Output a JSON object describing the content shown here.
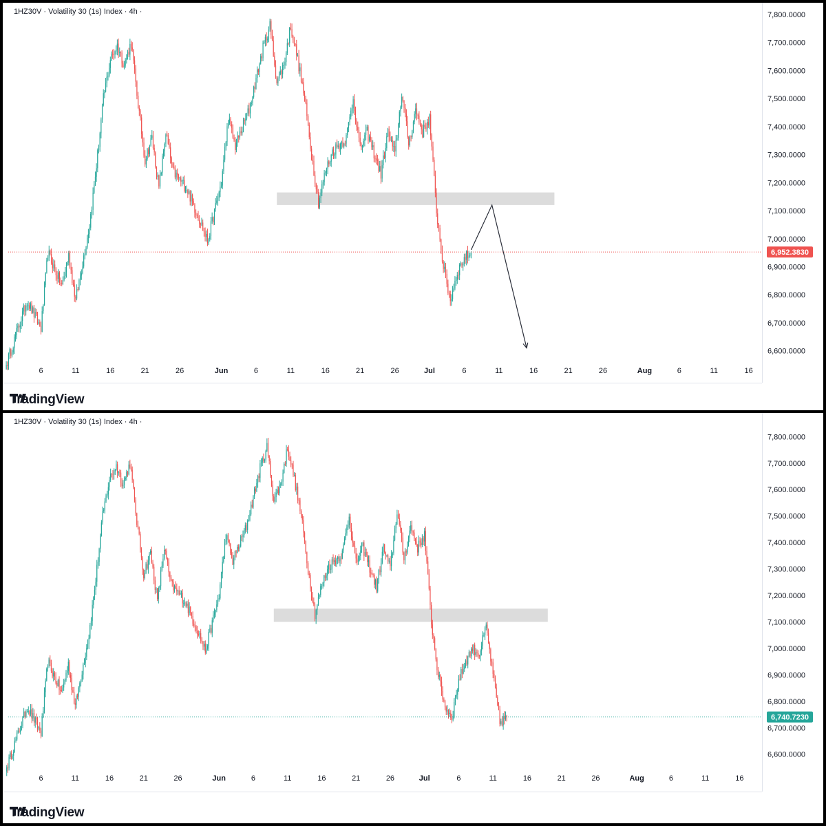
{
  "brand": {
    "name": "TradingView"
  },
  "colors": {
    "up": "#26a69a",
    "down": "#ef5350",
    "zone": "#dcdcdc",
    "grid": "#e0e3eb",
    "text": "#131722"
  },
  "chart_data": [
    {
      "type": "candlestick",
      "header": "1HZ30V · Volatility 30 (1s) Index · 4h ·",
      "y_ticks": [
        "7,800.0000",
        "7,700.0000",
        "7,600.0000",
        "7,500.0000",
        "7,400.0000",
        "7,300.0000",
        "7,200.0000",
        "7,100.0000",
        "7,000.0000",
        "6,900.0000",
        "6,800.0000",
        "6,700.0000",
        "6,600.0000"
      ],
      "x_ticks": [
        "6",
        "11",
        "16",
        "21",
        "26",
        "Jun",
        "6",
        "11",
        "16",
        "21",
        "26",
        "Jul",
        "6",
        "11",
        "16",
        "21",
        "26",
        "Aug",
        "6",
        "11",
        "16"
      ],
      "ylim": [
        6550,
        7800
      ],
      "last_price": {
        "label": "6,952.3830",
        "value": 6952.383,
        "direction": "down"
      },
      "zone": {
        "from": 7120,
        "to": 7165,
        "start": "Jun 9",
        "end": "Jul 19"
      },
      "projection": [
        {
          "date": "Jul 7",
          "price": 6960
        },
        {
          "date": "Jul 10",
          "price": 7120
        },
        {
          "date": "Jul 15",
          "price": 6610
        }
      ],
      "anchors": [
        [
          "May 1",
          6550
        ],
        [
          "May 4",
          6780
        ],
        [
          "May 6",
          6680
        ],
        [
          "May 7",
          6950
        ],
        [
          "May 8",
          6890
        ],
        [
          "May 9",
          6830
        ],
        [
          "May 10",
          6940
        ],
        [
          "May 11",
          6780
        ],
        [
          "May 13",
          7050
        ],
        [
          "May 14",
          7260
        ],
        [
          "May 15",
          7500
        ],
        [
          "May 16",
          7640
        ],
        [
          "May 17",
          7690
        ],
        [
          "May 18",
          7620
        ],
        [
          "May 19",
          7700
        ],
        [
          "May 20",
          7480
        ],
        [
          "May 21",
          7280
        ],
        [
          "May 22",
          7360
        ],
        [
          "May 23",
          7180
        ],
        [
          "May 24",
          7380
        ],
        [
          "May 25",
          7240
        ],
        [
          "May 27",
          7180
        ],
        [
          "May 29",
          7060
        ],
        [
          "May 30",
          6990
        ],
        [
          "Jun 1",
          7200
        ],
        [
          "Jun 2",
          7430
        ],
        [
          "Jun 3",
          7330
        ],
        [
          "Jun 5",
          7460
        ],
        [
          "Jun 7",
          7680
        ],
        [
          "Jun 8",
          7760
        ],
        [
          "Jun 9",
          7560
        ],
        [
          "Jun 10",
          7620
        ],
        [
          "Jun 11",
          7760
        ],
        [
          "Jun 12",
          7640
        ],
        [
          "Jun 13",
          7500
        ],
        [
          "Jun 14",
          7300
        ],
        [
          "Jun 15",
          7130
        ],
        [
          "Jun 16",
          7240
        ],
        [
          "Jun 17",
          7310
        ],
        [
          "Jun 19",
          7360
        ],
        [
          "Jun 20",
          7500
        ],
        [
          "Jun 21",
          7320
        ],
        [
          "Jun 22",
          7380
        ],
        [
          "Jun 24",
          7230
        ],
        [
          "Jun 25",
          7380
        ],
        [
          "Jun 26",
          7300
        ],
        [
          "Jun 27",
          7520
        ],
        [
          "Jun 28",
          7340
        ],
        [
          "Jun 29",
          7460
        ],
        [
          "Jun 30",
          7380
        ],
        [
          "Jul 1",
          7430
        ],
        [
          "Jul 2",
          7100
        ],
        [
          "Jul 3",
          6900
        ],
        [
          "Jul 4",
          6780
        ],
        [
          "Jul 5",
          6880
        ],
        [
          "Jul 6",
          6930
        ],
        [
          "Jul 7",
          6952
        ]
      ]
    },
    {
      "type": "candlestick",
      "header": "1HZ30V · Volatility 30 (1s) Index · 4h ·",
      "y_ticks": [
        "7,800.0000",
        "7,700.0000",
        "7,600.0000",
        "7,500.0000",
        "7,400.0000",
        "7,300.0000",
        "7,200.0000",
        "7,100.0000",
        "7,000.0000",
        "6,900.0000",
        "6,800.0000",
        "6,700.0000",
        "6,600.0000"
      ],
      "x_ticks": [
        "6",
        "11",
        "16",
        "21",
        "26",
        "Jun",
        "6",
        "11",
        "16",
        "21",
        "26",
        "Jul",
        "6",
        "11",
        "16",
        "21",
        "26",
        "Aug",
        "6",
        "11",
        "16"
      ],
      "ylim": [
        6550,
        7800
      ],
      "last_price": {
        "label": "6,740.7230",
        "value": 6740.723,
        "direction": "up"
      },
      "zone": {
        "from": 7100,
        "to": 7150,
        "start": "Jun 9",
        "end": "Jul 19"
      },
      "anchors": [
        [
          "May 1",
          6550
        ],
        [
          "May 4",
          6780
        ],
        [
          "May 6",
          6680
        ],
        [
          "May 7",
          6950
        ],
        [
          "May 8",
          6890
        ],
        [
          "May 9",
          6830
        ],
        [
          "May 10",
          6940
        ],
        [
          "May 11",
          6780
        ],
        [
          "May 13",
          7050
        ],
        [
          "May 14",
          7260
        ],
        [
          "May 15",
          7500
        ],
        [
          "May 16",
          7640
        ],
        [
          "May 17",
          7690
        ],
        [
          "May 18",
          7620
        ],
        [
          "May 19",
          7700
        ],
        [
          "May 20",
          7480
        ],
        [
          "May 21",
          7280
        ],
        [
          "May 22",
          7360
        ],
        [
          "May 23",
          7180
        ],
        [
          "May 24",
          7380
        ],
        [
          "May 25",
          7240
        ],
        [
          "May 27",
          7180
        ],
        [
          "May 29",
          7060
        ],
        [
          "May 30",
          6990
        ],
        [
          "Jun 1",
          7200
        ],
        [
          "Jun 2",
          7430
        ],
        [
          "Jun 3",
          7330
        ],
        [
          "Jun 5",
          7460
        ],
        [
          "Jun 7",
          7680
        ],
        [
          "Jun 8",
          7760
        ],
        [
          "Jun 9",
          7560
        ],
        [
          "Jun 10",
          7620
        ],
        [
          "Jun 11",
          7760
        ],
        [
          "Jun 12",
          7640
        ],
        [
          "Jun 13",
          7500
        ],
        [
          "Jun 14",
          7300
        ],
        [
          "Jun 15",
          7130
        ],
        [
          "Jun 16",
          7240
        ],
        [
          "Jun 17",
          7310
        ],
        [
          "Jun 19",
          7360
        ],
        [
          "Jun 20",
          7500
        ],
        [
          "Jun 21",
          7320
        ],
        [
          "Jun 22",
          7380
        ],
        [
          "Jun 24",
          7230
        ],
        [
          "Jun 25",
          7380
        ],
        [
          "Jun 26",
          7300
        ],
        [
          "Jun 27",
          7520
        ],
        [
          "Jun 28",
          7340
        ],
        [
          "Jun 29",
          7460
        ],
        [
          "Jun 30",
          7380
        ],
        [
          "Jul 1",
          7430
        ],
        [
          "Jul 2",
          7100
        ],
        [
          "Jul 3",
          6900
        ],
        [
          "Jul 4",
          6780
        ],
        [
          "Jul 5",
          6740
        ],
        [
          "Jul 6",
          6880
        ],
        [
          "Jul 7",
          6950
        ],
        [
          "Jul 8",
          7000
        ],
        [
          "Jul 9",
          6980
        ],
        [
          "Jul 10",
          7080
        ],
        [
          "Jul 11",
          6900
        ],
        [
          "Jul 12",
          6720
        ],
        [
          "Jul 13",
          6741
        ]
      ]
    }
  ]
}
